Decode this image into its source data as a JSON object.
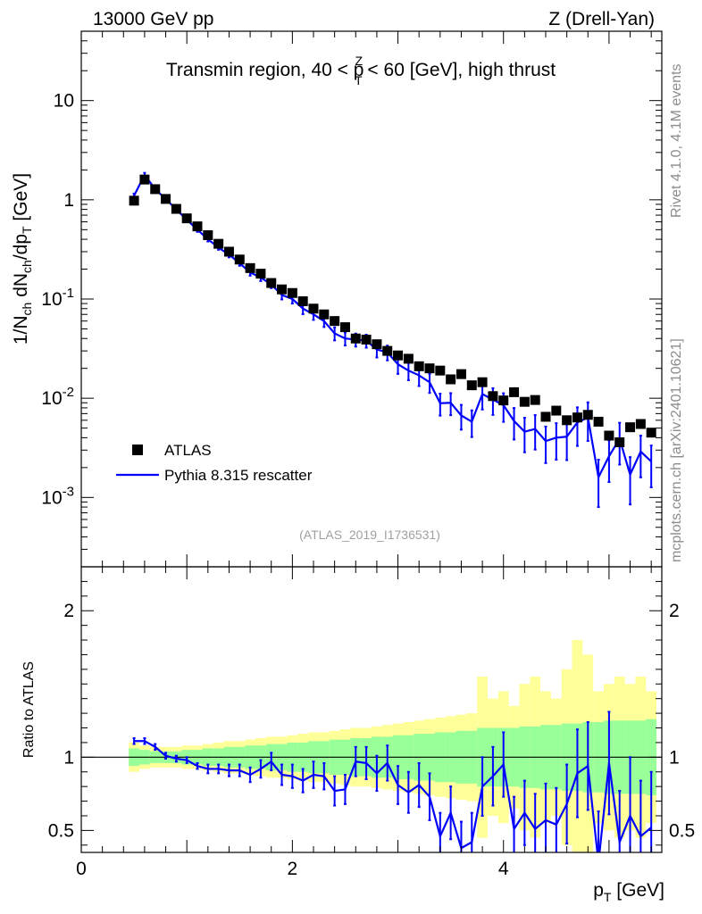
{
  "header": {
    "energy_label": "13000 GeV pp",
    "process_label": "Z (Drell-Yan)",
    "title_pre": "Transmin region, 40 < p",
    "title_sup": "Z",
    "title_sub": "T",
    "title_post": " < 60 [GeV], high thrust",
    "analysis_id": "(ATLAS_2019_I1736531)"
  },
  "side": {
    "rivet_label": "Rivet 4.1.0,  4.1M events",
    "mcplots_label": "mcplots.cern.ch [arXiv:2401.10621]"
  },
  "legend": {
    "data_label": "ATLAS",
    "mc_label": "Pythia 8.315 rescatter"
  },
  "axes": {
    "ylabel_main": "1/N_ch dN_ch/dp_T [GeV]",
    "ylabel_ratio": "Ratio to ATLAS",
    "xlabel": "p_T [GeV]",
    "main_yticks": [
      {
        "value": 0.001,
        "label": "10^-3"
      },
      {
        "value": 0.01,
        "label": "10^-2"
      },
      {
        "value": 0.1,
        "label": "10^-1"
      },
      {
        "value": 1,
        "label": "1"
      },
      {
        "value": 10,
        "label": "10"
      }
    ],
    "ratio_yticks": [
      {
        "value": 0.5,
        "label": "0.5"
      },
      {
        "value": 1,
        "label": "1"
      },
      {
        "value": 2,
        "label": "2"
      }
    ],
    "xticks": [
      {
        "value": 0,
        "label": "0"
      },
      {
        "value": 2,
        "label": "2"
      },
      {
        "value": 4,
        "label": "4"
      }
    ]
  },
  "colors": {
    "mc_line": "#0000ff",
    "data_marker": "#000000",
    "band_inner": "#99ff99",
    "band_outer": "#ffff99",
    "side_text": "#8c8c8c",
    "analysis_text": "#a0a0a0"
  },
  "chart_data": [
    {
      "type": "scatter",
      "panel": "main",
      "title": "Transmin region, 40 < pT^Z < 60 [GeV], high thrust",
      "xlabel": "pT [GeV]",
      "ylabel": "1/Nch dNch/dpT [GeV]",
      "yscale": "log",
      "xlim": [
        0,
        5.5
      ],
      "ylim": [
        0.0002,
        50
      ],
      "x": [
        0.5,
        0.6,
        0.7,
        0.8,
        0.9,
        1.0,
        1.1,
        1.2,
        1.3,
        1.4,
        1.5,
        1.6,
        1.7,
        1.8,
        1.9,
        2.0,
        2.1,
        2.2,
        2.3,
        2.4,
        2.5,
        2.6,
        2.7,
        2.8,
        2.9,
        3.0,
        3.1,
        3.2,
        3.3,
        3.4,
        3.5,
        3.6,
        3.7,
        3.8,
        3.9,
        4.0,
        4.1,
        4.2,
        4.3,
        4.4,
        4.5,
        4.6,
        4.7,
        4.8,
        4.9,
        5.0,
        5.1,
        5.2,
        5.3,
        5.4
      ],
      "series": [
        {
          "name": "ATLAS",
          "values": [
            0.98,
            1.6,
            1.28,
            1.02,
            0.81,
            0.65,
            0.54,
            0.44,
            0.36,
            0.3,
            0.25,
            0.205,
            0.18,
            0.145,
            0.125,
            0.115,
            0.095,
            0.08,
            0.07,
            0.06,
            0.052,
            0.04,
            0.039,
            0.035,
            0.03,
            0.027,
            0.025,
            0.021,
            0.02,
            0.019,
            0.0155,
            0.0175,
            0.0135,
            0.0145,
            0.0105,
            0.0095,
            0.0115,
            0.0092,
            0.0096,
            0.0065,
            0.0075,
            0.006,
            0.0064,
            0.0068,
            0.0058,
            0.0042,
            0.0036,
            0.0051,
            0.0055,
            0.0045
          ]
        },
        {
          "name": "Pythia 8.315 rescatter",
          "values": [
            1.1,
            1.78,
            1.28,
            1.02,
            0.8,
            0.63,
            0.5,
            0.4,
            0.33,
            0.28,
            0.23,
            0.185,
            0.165,
            0.14,
            0.11,
            0.1,
            0.08,
            0.07,
            0.06,
            0.045,
            0.04,
            0.039,
            0.038,
            0.031,
            0.029,
            0.022,
            0.019,
            0.017,
            0.0145,
            0.0089,
            0.009,
            0.0067,
            0.0058,
            0.011,
            0.0097,
            0.0085,
            0.0059,
            0.0046,
            0.0049,
            0.0037,
            0.004,
            0.0041,
            0.0057,
            0.0064,
            0.0016,
            0.0026,
            0.0039,
            0.0017,
            0.0029,
            0.0023
          ],
          "err_rel": [
            0.05,
            0.05,
            0.04,
            0.04,
            0.04,
            0.04,
            0.05,
            0.05,
            0.05,
            0.06,
            0.06,
            0.07,
            0.08,
            0.08,
            0.1,
            0.1,
            0.12,
            0.12,
            0.13,
            0.15,
            0.15,
            0.15,
            0.15,
            0.17,
            0.17,
            0.2,
            0.2,
            0.22,
            0.22,
            0.25,
            0.25,
            0.28,
            0.3,
            0.3,
            0.3,
            0.32,
            0.35,
            0.38,
            0.38,
            0.4,
            0.4,
            0.42,
            0.42,
            0.42,
            0.5,
            0.45,
            0.45,
            0.5,
            0.45,
            0.45
          ]
        }
      ]
    },
    {
      "type": "line",
      "panel": "ratio",
      "ylabel": "Ratio to ATLAS",
      "xlabel": "pT [GeV]",
      "xlim": [
        0,
        5.5
      ],
      "ylim": [
        0.35,
        2.3
      ],
      "x": [
        0.5,
        0.6,
        0.7,
        0.8,
        0.9,
        1.0,
        1.1,
        1.2,
        1.3,
        1.4,
        1.5,
        1.6,
        1.7,
        1.8,
        1.9,
        2.0,
        2.1,
        2.2,
        2.3,
        2.4,
        2.5,
        2.6,
        2.7,
        2.8,
        2.9,
        3.0,
        3.1,
        3.2,
        3.3,
        3.4,
        3.5,
        3.6,
        3.7,
        3.8,
        3.9,
        4.0,
        4.1,
        4.2,
        4.3,
        4.4,
        4.5,
        4.6,
        4.7,
        4.8,
        4.9,
        5.0,
        5.1,
        5.2,
        5.3,
        5.4
      ],
      "series": [
        {
          "name": "Pythia 8.315 rescatter / ATLAS",
          "values": [
            1.11,
            1.11,
            1.07,
            1.01,
            0.99,
            0.98,
            0.94,
            0.92,
            0.92,
            0.91,
            0.91,
            0.88,
            0.92,
            0.97,
            0.88,
            0.87,
            0.84,
            0.88,
            0.87,
            0.77,
            0.78,
            0.97,
            0.96,
            0.89,
            0.96,
            0.81,
            0.76,
            0.81,
            0.73,
            0.46,
            0.62,
            0.38,
            0.42,
            0.8,
            0.87,
            0.95,
            0.51,
            0.62,
            0.51,
            0.57,
            0.54,
            0.68,
            0.89,
            0.94,
            0.28,
            0.96,
            0.42,
            0.6,
            0.46,
            0.52
          ],
          "err_abs": [
            0.02,
            0.02,
            0.02,
            0.02,
            0.02,
            0.02,
            0.02,
            0.03,
            0.03,
            0.04,
            0.04,
            0.05,
            0.06,
            0.06,
            0.07,
            0.08,
            0.08,
            0.09,
            0.09,
            0.1,
            0.1,
            0.1,
            0.11,
            0.12,
            0.12,
            0.13,
            0.14,
            0.15,
            0.16,
            0.16,
            0.18,
            0.18,
            0.2,
            0.2,
            0.2,
            0.22,
            0.22,
            0.22,
            0.24,
            0.25,
            0.25,
            0.27,
            0.3,
            0.3,
            0.35,
            0.35,
            0.35,
            0.4,
            0.38,
            0.38
          ]
        }
      ],
      "bands": {
        "x_edges": [
          0.45,
          0.55,
          0.65,
          0.75,
          0.85,
          0.95,
          1.05,
          1.15,
          1.25,
          1.35,
          1.45,
          1.55,
          1.65,
          1.75,
          1.85,
          1.95,
          2.05,
          2.15,
          2.25,
          2.35,
          2.45,
          2.55,
          2.65,
          2.75,
          2.85,
          2.95,
          3.05,
          3.15,
          3.25,
          3.35,
          3.45,
          3.55,
          3.65,
          3.75,
          3.85,
          3.95,
          4.05,
          4.15,
          4.25,
          4.35,
          4.45,
          4.55,
          4.65,
          4.75,
          4.85,
          4.95,
          5.05,
          5.15,
          5.25,
          5.35,
          5.45
        ],
        "inner_half_width": [
          0.06,
          0.05,
          0.04,
          0.04,
          0.04,
          0.05,
          0.05,
          0.06,
          0.06,
          0.07,
          0.07,
          0.08,
          0.08,
          0.09,
          0.09,
          0.1,
          0.1,
          0.11,
          0.11,
          0.12,
          0.12,
          0.13,
          0.13,
          0.14,
          0.14,
          0.15,
          0.15,
          0.16,
          0.16,
          0.17,
          0.17,
          0.18,
          0.18,
          0.2,
          0.2,
          0.2,
          0.2,
          0.21,
          0.21,
          0.22,
          0.22,
          0.23,
          0.23,
          0.24,
          0.24,
          0.25,
          0.25,
          0.25,
          0.25,
          0.26
        ],
        "outer_half_width": [
          0.1,
          0.08,
          0.07,
          0.07,
          0.07,
          0.08,
          0.08,
          0.09,
          0.1,
          0.11,
          0.11,
          0.12,
          0.13,
          0.14,
          0.14,
          0.15,
          0.16,
          0.17,
          0.17,
          0.18,
          0.19,
          0.2,
          0.2,
          0.21,
          0.22,
          0.23,
          0.24,
          0.25,
          0.26,
          0.27,
          0.28,
          0.29,
          0.3,
          0.55,
          0.4,
          0.45,
          0.35,
          0.5,
          0.55,
          0.45,
          0.4,
          0.6,
          0.8,
          0.7,
          0.45,
          0.5,
          0.55,
          0.5,
          0.55,
          0.45
        ]
      }
    }
  ]
}
